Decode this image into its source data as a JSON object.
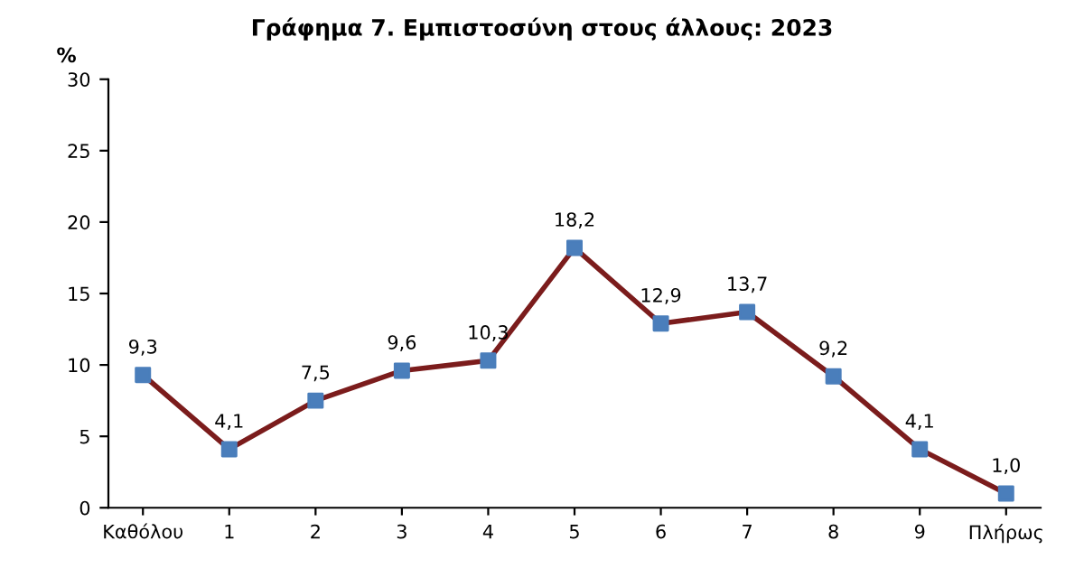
{
  "chart_data": {
    "type": "line",
    "title": "Γράφημα 7. Εμπιστοσύνη στους άλλους: 2023",
    "ylabel": "%",
    "categories": [
      "Καθόλου",
      "1",
      "2",
      "3",
      "4",
      "5",
      "6",
      "7",
      "8",
      "9",
      "Πλήρως"
    ],
    "series": [
      {
        "color": "#7b1c1c",
        "colors": [
          "#4a7ebb",
          "#4a7ebb",
          "#4a7ebb",
          "#4a7ebb",
          "#4a7ebb",
          "#4a7ebb",
          "#4a7ebb",
          "#4a7ebb",
          "#4a7ebb",
          "#4a7ebb",
          "#4a7ebb"
        ],
        "values": [
          9.3,
          4.1,
          7.5,
          9.6,
          10.3,
          18.2,
          12.9,
          13.7,
          9.2,
          4.1,
          1.0
        ],
        "value_labels": [
          "9,3",
          "4,1",
          "7,5",
          "9,6",
          "10,3",
          "18,2",
          "12,9",
          "13,7",
          "9,2",
          "4,1",
          "1,0"
        ]
      }
    ],
    "ylim": [
      0,
      30
    ],
    "yticks": [
      0,
      5,
      10,
      15,
      20,
      25,
      30
    ],
    "grid": false,
    "legend": false,
    "marker": "square",
    "line_style": "solid"
  }
}
